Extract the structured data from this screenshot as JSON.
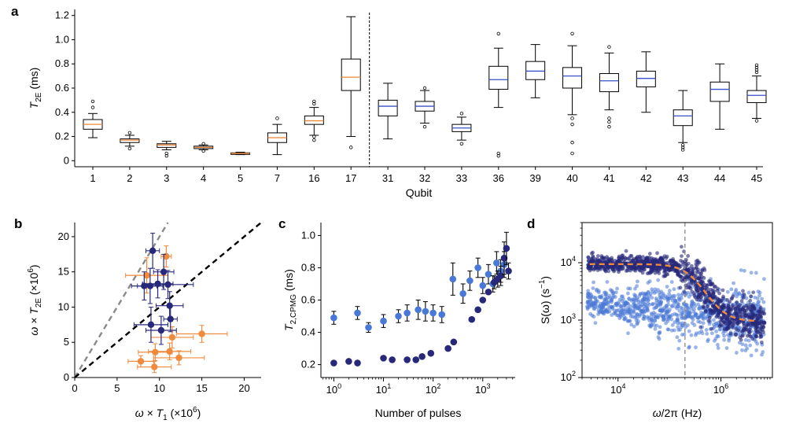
{
  "colors": {
    "dark": "#27287a",
    "light": "#4a78d6",
    "orange": "#f08a3c",
    "gray": "#8a8a8a",
    "median_blue": "#3a50c8",
    "median_orange": "#f08a3c"
  },
  "chart_data": [
    {
      "panel": "a",
      "type": "box",
      "ylabel_main": "T",
      "ylabel_sub": "2E",
      "ylabel_unit": " (ms)",
      "xlabel": "Qubit",
      "ylim": [
        -0.05,
        1.25
      ],
      "yticks": [
        "0",
        "0.2",
        "0.4",
        "0.6",
        "0.8",
        "1.0",
        "1.2"
      ],
      "divider_after": "17",
      "categories": [
        "1",
        "2",
        "3",
        "4",
        "5",
        "7",
        "16",
        "17",
        "31",
        "32",
        "33",
        "36",
        "39",
        "40",
        "41",
        "42",
        "43",
        "44",
        "45"
      ],
      "boxes": [
        {
          "q": "1",
          "min": 0.19,
          "q1": 0.26,
          "med": 0.3,
          "q3": 0.34,
          "max": 0.39,
          "out": [
            0.44,
            0.49
          ],
          "median_color": "orange"
        },
        {
          "q": "2",
          "min": 0.12,
          "q1": 0.15,
          "med": 0.17,
          "q3": 0.18,
          "max": 0.21,
          "out": [
            0.1,
            0.23
          ],
          "median_color": "orange"
        },
        {
          "q": "3",
          "min": 0.09,
          "q1": 0.11,
          "med": 0.13,
          "q3": 0.14,
          "max": 0.16,
          "out": [
            0.04,
            0.06
          ],
          "median_color": "orange"
        },
        {
          "q": "4",
          "min": 0.09,
          "q1": 0.1,
          "med": 0.11,
          "q3": 0.12,
          "max": 0.13,
          "out": [
            0.08,
            0.14
          ],
          "median_color": "orange"
        },
        {
          "q": "5",
          "min": 0.05,
          "q1": 0.055,
          "med": 0.06,
          "q3": 0.065,
          "max": 0.07,
          "out": [],
          "median_color": "orange"
        },
        {
          "q": "7",
          "min": 0.05,
          "q1": 0.15,
          "med": 0.19,
          "q3": 0.23,
          "max": 0.3,
          "out": [
            0.35
          ],
          "median_color": "orange"
        },
        {
          "q": "16",
          "min": 0.21,
          "q1": 0.3,
          "med": 0.33,
          "q3": 0.37,
          "max": 0.44,
          "out": [
            0.17,
            0.2,
            0.47,
            0.49
          ],
          "median_color": "orange"
        },
        {
          "q": "17",
          "min": 0.2,
          "q1": 0.58,
          "med": 0.69,
          "q3": 0.84,
          "max": 1.19,
          "out": [
            0.11
          ],
          "median_color": "orange"
        },
        {
          "q": "31",
          "min": 0.18,
          "q1": 0.37,
          "med": 0.45,
          "q3": 0.5,
          "max": 0.64,
          "out": [],
          "median_color": "blue"
        },
        {
          "q": "32",
          "min": 0.31,
          "q1": 0.41,
          "med": 0.45,
          "q3": 0.49,
          "max": 0.58,
          "out": [
            0.28,
            0.6
          ],
          "median_color": "blue"
        },
        {
          "q": "33",
          "min": 0.17,
          "q1": 0.24,
          "med": 0.27,
          "q3": 0.3,
          "max": 0.36,
          "out": [
            0.14,
            0.39
          ],
          "median_color": "blue"
        },
        {
          "q": "36",
          "min": 0.44,
          "q1": 0.59,
          "med": 0.67,
          "q3": 0.78,
          "max": 0.93,
          "out": [
            0.04,
            0.06,
            1.05
          ],
          "median_color": "blue"
        },
        {
          "q": "39",
          "min": 0.52,
          "q1": 0.67,
          "med": 0.74,
          "q3": 0.82,
          "max": 0.96,
          "out": [],
          "median_color": "blue"
        },
        {
          "q": "40",
          "min": 0.38,
          "q1": 0.6,
          "med": 0.7,
          "q3": 0.77,
          "max": 0.95,
          "out": [
            0.06,
            0.15,
            0.3,
            0.35,
            1.05
          ],
          "median_color": "blue"
        },
        {
          "q": "41",
          "min": 0.42,
          "q1": 0.57,
          "med": 0.66,
          "q3": 0.72,
          "max": 0.89,
          "out": [
            0.28,
            0.32,
            0.35,
            0.94
          ],
          "median_color": "blue"
        },
        {
          "q": "42",
          "min": 0.4,
          "q1": 0.61,
          "med": 0.68,
          "q3": 0.74,
          "max": 0.9,
          "out": [],
          "median_color": "blue"
        },
        {
          "q": "43",
          "min": 0.15,
          "q1": 0.29,
          "med": 0.37,
          "q3": 0.42,
          "max": 0.58,
          "out": [
            0.09,
            0.11,
            0.13
          ],
          "median_color": "blue"
        },
        {
          "q": "44",
          "min": 0.26,
          "q1": 0.49,
          "med": 0.59,
          "q3": 0.65,
          "max": 0.8,
          "out": [],
          "median_color": "blue"
        },
        {
          "q": "45",
          "min": 0.35,
          "q1": 0.48,
          "med": 0.54,
          "q3": 0.58,
          "max": 0.7,
          "out": [
            0.33,
            0.73,
            0.75,
            0.77,
            0.79
          ],
          "median_color": "blue"
        }
      ]
    },
    {
      "panel": "b",
      "type": "scatter",
      "xlabel_pre": "ω × T",
      "xlabel_sub": "1",
      "xlabel_post": " (×10",
      "xlabel_sup": "6",
      "xlabel_end": ")",
      "ylabel_pre": "ω × T",
      "ylabel_sub": "2E",
      "ylabel_post": " (×10",
      "ylabel_sup": "6",
      "ylabel_end": ")",
      "xlim": [
        0,
        22
      ],
      "ylim": [
        0,
        22
      ],
      "xticks": [
        "0",
        "5",
        "10",
        "15",
        "20"
      ],
      "yticks": [
        "0",
        "5",
        "10",
        "15",
        "20"
      ],
      "lines": [
        {
          "color": "gray",
          "slope": 2
        },
        {
          "color": "black",
          "slope": 1
        }
      ],
      "series": [
        {
          "color": "dark",
          "points": [
            {
              "x": 9.2,
              "y": 18.0,
              "xe": 0.8,
              "ye": 2.5
            },
            {
              "x": 8.2,
              "y": 13.0,
              "xe": 1.5,
              "ye": 2.0
            },
            {
              "x": 8.9,
              "y": 13.0,
              "xe": 1.5,
              "ye": 2.5
            },
            {
              "x": 9.8,
              "y": 13.3,
              "xe": 1.8,
              "ye": 2.0
            },
            {
              "x": 10.5,
              "y": 15.0,
              "xe": 1.2,
              "ye": 2.5
            },
            {
              "x": 11.0,
              "y": 13.2,
              "xe": 3.0,
              "ye": 2.0
            },
            {
              "x": 9.0,
              "y": 7.5,
              "xe": 2.0,
              "ye": 2.5
            },
            {
              "x": 10.2,
              "y": 6.7,
              "xe": 1.8,
              "ye": 2.0
            },
            {
              "x": 11.2,
              "y": 10.2,
              "xe": 1.6,
              "ye": 2.0
            },
            {
              "x": 11.3,
              "y": 8.3,
              "xe": 0.8,
              "ye": 1.8
            }
          ]
        },
        {
          "color": "orange",
          "points": [
            {
              "x": 8.5,
              "y": 14.5,
              "xe": 2.5,
              "ye": 2.5
            },
            {
              "x": 10.8,
              "y": 17.2,
              "xe": 0.6,
              "ye": 1.5
            },
            {
              "x": 11.5,
              "y": 5.7,
              "xe": 2.5,
              "ye": 1.5
            },
            {
              "x": 15.0,
              "y": 6.2,
              "xe": 3.0,
              "ye": 1.2
            },
            {
              "x": 9.5,
              "y": 3.6,
              "xe": 2.0,
              "ye": 1.2
            },
            {
              "x": 11.2,
              "y": 3.7,
              "xe": 2.5,
              "ye": 1.2
            },
            {
              "x": 12.3,
              "y": 2.8,
              "xe": 3.0,
              "ye": 1.0
            },
            {
              "x": 7.8,
              "y": 2.3,
              "xe": 1.5,
              "ye": 0.8
            },
            {
              "x": 9.4,
              "y": 1.5,
              "xe": 2.0,
              "ye": 0.8
            }
          ]
        }
      ]
    },
    {
      "panel": "c",
      "type": "scatter",
      "xscale": "log",
      "xlabel": "Number of pulses",
      "ylabel_main": "T",
      "ylabel_sub": "2,CPMG",
      "ylabel_unit": " (ms)",
      "xlim": [
        0.55,
        4500
      ],
      "ylim": [
        0.12,
        1.08
      ],
      "xticks": [
        {
          "v": 1,
          "e": "0"
        },
        {
          "v": 10,
          "e": "1"
        },
        {
          "v": 100,
          "e": "2"
        },
        {
          "v": 1000,
          "e": "3"
        }
      ],
      "yticks": [
        "0.2",
        "0.4",
        "0.6",
        "0.8",
        "1.0"
      ],
      "series": [
        {
          "color": "light",
          "points": [
            {
              "x": 1,
              "y": 0.49,
              "e": 0.04
            },
            {
              "x": 3,
              "y": 0.52,
              "e": 0.04
            },
            {
              "x": 5,
              "y": 0.43,
              "e": 0.03
            },
            {
              "x": 10,
              "y": 0.47,
              "e": 0.04
            },
            {
              "x": 20,
              "y": 0.5,
              "e": 0.04
            },
            {
              "x": 30,
              "y": 0.52,
              "e": 0.05
            },
            {
              "x": 50,
              "y": 0.54,
              "e": 0.06
            },
            {
              "x": 70,
              "y": 0.53,
              "e": 0.06
            },
            {
              "x": 100,
              "y": 0.52,
              "e": 0.05
            },
            {
              "x": 150,
              "y": 0.51,
              "e": 0.05
            },
            {
              "x": 250,
              "y": 0.73,
              "e": 0.1
            },
            {
              "x": 400,
              "y": 0.64,
              "e": 0.06
            },
            {
              "x": 550,
              "y": 0.72,
              "e": 0.06
            },
            {
              "x": 800,
              "y": 0.8,
              "e": 0.06
            },
            {
              "x": 1000,
              "y": 0.69,
              "e": 0.05
            },
            {
              "x": 1300,
              "y": 0.76,
              "e": 0.06
            },
            {
              "x": 1600,
              "y": 0.7,
              "e": 0.05
            },
            {
              "x": 1900,
              "y": 0.83,
              "e": 0.07
            },
            {
              "x": 2300,
              "y": 0.78,
              "e": 0.07
            },
            {
              "x": 2700,
              "y": 0.82,
              "e": 0.08
            }
          ]
        },
        {
          "color": "dark",
          "points": [
            {
              "x": 1,
              "y": 0.21,
              "e": 0
            },
            {
              "x": 2,
              "y": 0.22,
              "e": 0
            },
            {
              "x": 3,
              "y": 0.21,
              "e": 0
            },
            {
              "x": 10,
              "y": 0.24,
              "e": 0
            },
            {
              "x": 15,
              "y": 0.23,
              "e": 0
            },
            {
              "x": 30,
              "y": 0.23,
              "e": 0
            },
            {
              "x": 45,
              "y": 0.23,
              "e": 0
            },
            {
              "x": 60,
              "y": 0.25,
              "e": 0
            },
            {
              "x": 90,
              "y": 0.27,
              "e": 0
            },
            {
              "x": 200,
              "y": 0.3,
              "e": 0
            },
            {
              "x": 260,
              "y": 0.34,
              "e": 0
            },
            {
              "x": 600,
              "y": 0.48,
              "e": 0
            },
            {
              "x": 800,
              "y": 0.54,
              "e": 0
            },
            {
              "x": 1000,
              "y": 0.6,
              "e": 0
            },
            {
              "x": 1300,
              "y": 0.65,
              "e": 0
            },
            {
              "x": 1700,
              "y": 0.71,
              "e": 0.04
            },
            {
              "x": 2000,
              "y": 0.73,
              "e": 0.05
            },
            {
              "x": 2300,
              "y": 0.75,
              "e": 0.06
            },
            {
              "x": 2700,
              "y": 0.86,
              "e": 0.1
            },
            {
              "x": 3000,
              "y": 0.92,
              "e": 0.1
            },
            {
              "x": 3300,
              "y": 0.78,
              "e": 0.05
            }
          ]
        }
      ]
    },
    {
      "panel": "d",
      "type": "scatter",
      "xscale": "log",
      "yscale": "log",
      "xlabel_pre": "ω",
      "xlabel_post": "/2π (Hz)",
      "ylabel_pre": "S(ω) (s",
      "ylabel_sup": "−1",
      "ylabel_end": ")",
      "xlim": [
        2000,
        10000000
      ],
      "ylim": [
        100,
        50000
      ],
      "xticks": [
        {
          "v": 10000,
          "e": "4"
        },
        {
          "v": 1000000,
          "e": "6"
        }
      ],
      "yticks": [
        {
          "v": 100,
          "e": "2"
        },
        {
          "v": 1000,
          "e": "3"
        },
        {
          "v": 10000,
          "e": "4"
        }
      ],
      "vline_x": 200000,
      "fit": {
        "color": "orange",
        "A": 8500,
        "B": 950,
        "fc": 300000,
        "n": 2.2
      },
      "clouds": [
        {
          "color": "dark",
          "desc": "plateau ~1e4 then roll-off to ~1e3 above 2e5 Hz"
        },
        {
          "color": "light",
          "desc": "~2e3 decreasing, widening scatter toward high frequency"
        }
      ]
    }
  ]
}
